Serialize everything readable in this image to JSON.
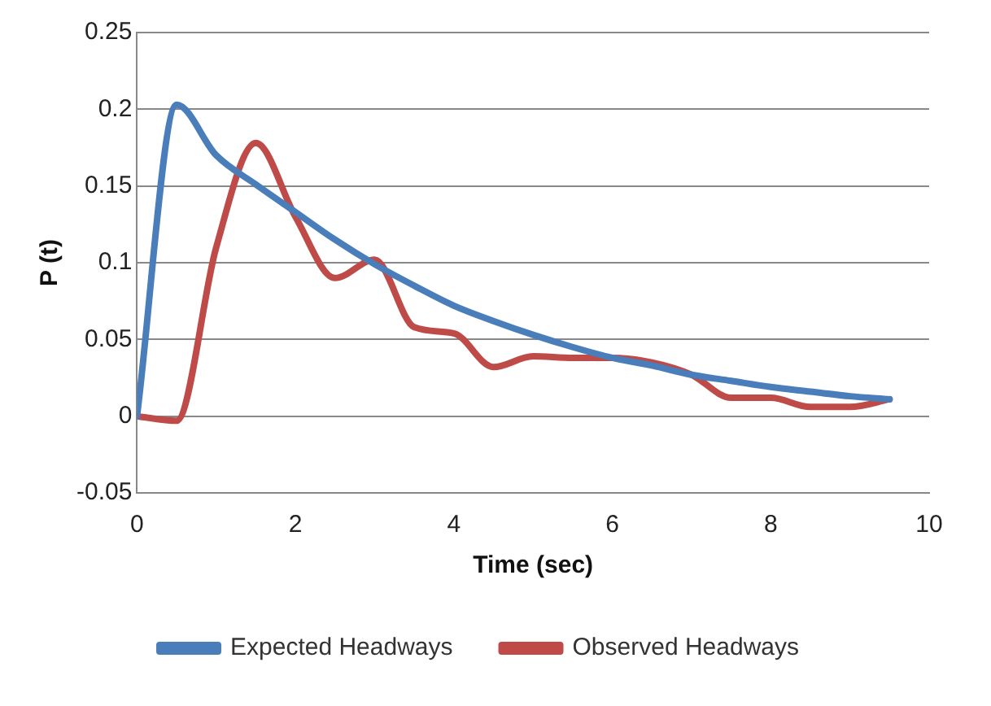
{
  "chart_data": {
    "type": "line",
    "xlabel": "Time (sec)",
    "ylabel": "P (t)",
    "x": [
      0,
      0.5,
      1,
      1.5,
      2,
      2.5,
      3,
      3.5,
      4,
      4.5,
      5,
      5.5,
      6,
      6.5,
      7,
      7.5,
      8,
      8.5,
      9,
      9.5
    ],
    "series": [
      {
        "name": "Expected Headways",
        "color": "#4a7ebb",
        "values": [
          0,
          0.203,
          0.17,
          0.151,
          0.133,
          0.115,
          0.099,
          0.085,
          0.072,
          0.062,
          0.053,
          0.045,
          0.038,
          0.033,
          0.027,
          0.023,
          0.019,
          0.016,
          0.013,
          0.011
        ]
      },
      {
        "name": "Observed Headways",
        "color": "#be4b48",
        "values": [
          0,
          -0.003,
          0.11,
          0.178,
          0.13,
          0.09,
          0.102,
          0.058,
          0.054,
          0.032,
          0.039,
          0.038,
          0.038,
          0.035,
          0.027,
          0.012,
          0.012,
          0.006,
          0.006,
          0.011
        ]
      }
    ],
    "xlim": [
      0,
      10
    ],
    "xticks": [
      0,
      2,
      4,
      6,
      8,
      10
    ],
    "ylim": [
      -0.05,
      0.25
    ],
    "yticks": [
      -0.05,
      0,
      0.05,
      0.1,
      0.15,
      0.2,
      0.25
    ],
    "grid": "y",
    "legend": "bottom",
    "marker": "none",
    "line_style": "solid"
  }
}
